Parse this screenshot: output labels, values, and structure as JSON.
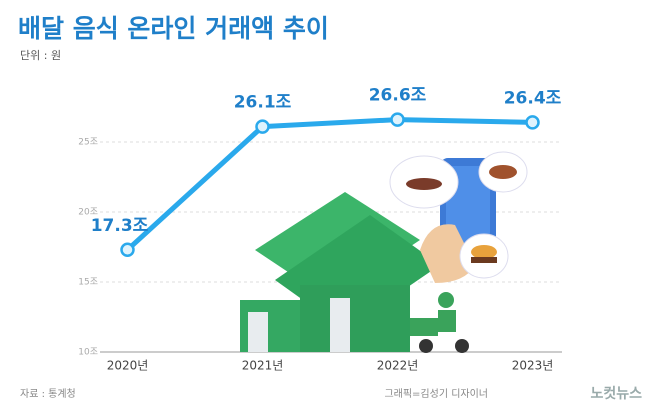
{
  "title": "배달 음식 온라인 거래액 추이",
  "subtitle": "단위 : 원",
  "source": "자료 : 통계청",
  "credit": "그래픽=김성기 디자이너",
  "logo": "노컷뉴스",
  "chart_data": {
    "type": "line",
    "categories": [
      "2020년",
      "2021년",
      "2022년",
      "2023년"
    ],
    "values": [
      17.3,
      26.1,
      26.6,
      26.4
    ],
    "value_labels": [
      "17.3조",
      "26.1조",
      "26.6조",
      "26.4조"
    ],
    "color": "#2aa9ec",
    "ylim": [
      10,
      28
    ],
    "yticks": [
      {
        "value": 10,
        "label": "10조"
      },
      {
        "value": 15,
        "label": "15조"
      },
      {
        "value": 20,
        "label": "20조"
      },
      {
        "value": 25,
        "label": "25조"
      }
    ],
    "grid": true
  }
}
